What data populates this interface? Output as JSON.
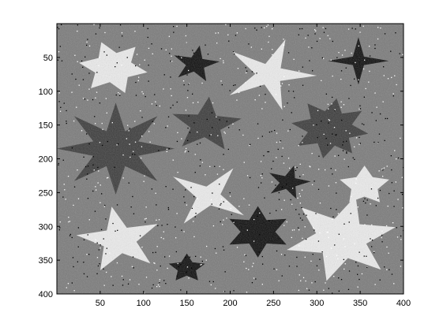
{
  "figure": {
    "x_ticks": [
      "50",
      "100",
      "150",
      "200",
      "250",
      "300",
      "350",
      "400"
    ],
    "y_ticks": [
      "50",
      "100",
      "150",
      "200",
      "250",
      "300",
      "350",
      "400"
    ],
    "x_range": [
      0,
      400
    ],
    "y_range": [
      0,
      400
    ],
    "background_color": "#7a7a7a",
    "shape_colors": {
      "white": "#ececec",
      "dark": "#3a3a3a",
      "black": "#0b0b0b"
    },
    "stars": [
      {
        "cx": 65,
        "cy": 65,
        "points": 6,
        "outer": 40,
        "inner": 22,
        "rot": -20,
        "tone": "white"
      },
      {
        "cx": 160,
        "cy": 60,
        "points": 5,
        "outer": 28,
        "inner": 11,
        "rot": 10,
        "tone": "black"
      },
      {
        "cx": 245,
        "cy": 75,
        "points": 5,
        "outer": 55,
        "inner": 16,
        "rot": 20,
        "tone": "white"
      },
      {
        "cx": 348,
        "cy": 55,
        "points": 4,
        "outer": 35,
        "inner": 9,
        "rot": 0,
        "tone": "black"
      },
      {
        "cx": 68,
        "cy": 185,
        "points": 8,
        "outer": 68,
        "inner": 28,
        "rot": 0,
        "tone": "dark"
      },
      {
        "cx": 172,
        "cy": 150,
        "points": 5,
        "outer": 42,
        "inner": 18,
        "rot": 5,
        "tone": "dark"
      },
      {
        "cx": 315,
        "cy": 155,
        "points": 8,
        "outer": 45,
        "inner": 26,
        "rot": 10,
        "tone": "dark"
      },
      {
        "cx": 267,
        "cy": 235,
        "points": 5,
        "outer": 26,
        "inner": 10,
        "rot": 15,
        "tone": "black"
      },
      {
        "cx": 175,
        "cy": 255,
        "points": 4,
        "outer": 50,
        "inner": 14,
        "rot": 35,
        "tone": "white"
      },
      {
        "cx": 355,
        "cy": 240,
        "points": 5,
        "outer": 30,
        "inner": 16,
        "rot": 0,
        "tone": "white"
      },
      {
        "cx": 232,
        "cy": 308,
        "points": 6,
        "outer": 38,
        "inner": 20,
        "rot": 0,
        "tone": "black"
      },
      {
        "cx": 72,
        "cy": 320,
        "points": 5,
        "outer": 50,
        "inner": 20,
        "rot": -10,
        "tone": "white"
      },
      {
        "cx": 150,
        "cy": 362,
        "points": 5,
        "outer": 22,
        "inner": 11,
        "rot": 0,
        "tone": "black"
      },
      {
        "cx": 328,
        "cy": 318,
        "points": 6,
        "outer": 65,
        "inner": 30,
        "rot": 15,
        "tone": "white"
      }
    ]
  }
}
